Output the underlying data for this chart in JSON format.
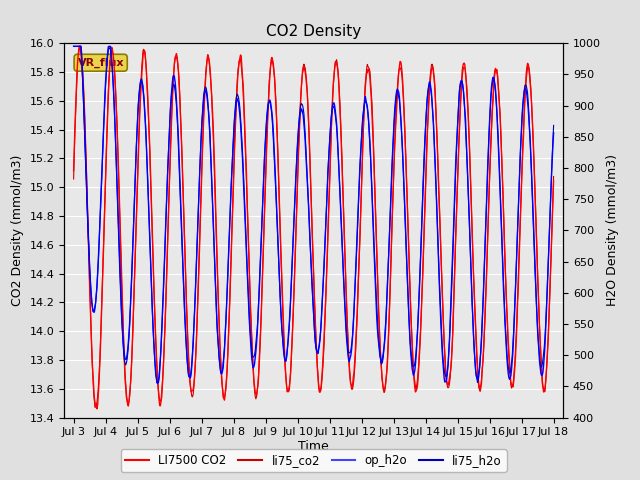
{
  "title": "CO2 Density",
  "xlabel": "Time",
  "ylabel_left": "CO2 Density (mmol/m3)",
  "ylabel_right": "H2O Density (mmol/m3)",
  "ylim_left": [
    13.4,
    16.0
  ],
  "ylim_right": [
    400,
    1000
  ],
  "yticks_left": [
    13.4,
    13.6,
    13.8,
    14.0,
    14.2,
    14.4,
    14.6,
    14.8,
    15.0,
    15.2,
    15.4,
    15.6,
    15.8,
    16.0
  ],
  "yticks_right": [
    400,
    450,
    500,
    550,
    600,
    650,
    700,
    750,
    800,
    850,
    900,
    950,
    1000
  ],
  "xtick_labels": [
    "Jul 3",
    "Jul 4",
    "Jul 5",
    "Jul 6",
    "Jul 7",
    "Jul 8",
    "Jul 9",
    "Jul 10",
    "Jul 11",
    "Jul 12",
    "Jul 13",
    "Jul 14",
    "Jul 15",
    "Jul 16",
    "Jul 17",
    "Jul 18"
  ],
  "annotation_text": "VR_flux",
  "annotation_bbox_facecolor": "#e8d44d",
  "annotation_bbox_edgecolor": "#8B7B00",
  "annotation_text_color": "#8b0000",
  "background_color": "#e0e0e0",
  "plot_bg_color": "#e8e8e8",
  "grid_color": "#ffffff",
  "co2_color": "#ff0000",
  "co2_color2": "#cc0000",
  "h2o_color": "#0000ff",
  "h2o_color2": "#0000aa",
  "legend_labels": [
    "LI7500 CO2",
    "li75_co2",
    "op_h2o",
    "li75_h2o"
  ],
  "legend_colors": [
    "#ff0000",
    "#cc0000",
    "#4444ff",
    "#0000bb"
  ]
}
